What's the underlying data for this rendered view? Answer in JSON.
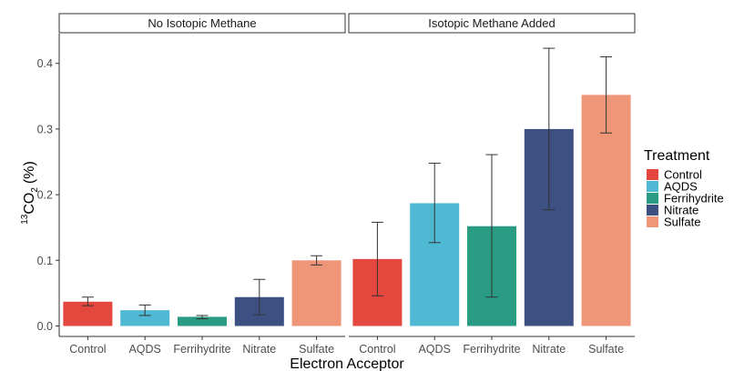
{
  "chart_data": {
    "type": "bar",
    "xlabel": "Electron Acceptor",
    "ylabel_main": "CO",
    "ylabel_sup": "13",
    "ylabel_sub": "2",
    "ylabel_unit": "(%)",
    "ylim": [
      0,
      0.43
    ],
    "yticks": [
      0.0,
      0.1,
      0.2,
      0.3,
      0.4
    ],
    "ytick_labels": [
      "0.0",
      "0.1",
      "0.2",
      "0.3",
      "0.4"
    ],
    "grid": false,
    "legend": {
      "title": "Treatment",
      "placement": "right",
      "items": [
        {
          "label": "Control",
          "color": "#e4473e"
        },
        {
          "label": "AQDS",
          "color": "#4fb8d3"
        },
        {
          "label": "Ferrihydrite",
          "color": "#2a9c83"
        },
        {
          "label": "Nitrate",
          "color": "#3d5082"
        },
        {
          "label": "Sulfate",
          "color": "#ef9679"
        }
      ]
    },
    "categories": [
      "Control",
      "AQDS",
      "Ferrihydrite",
      "Nitrate",
      "Sulfate"
    ],
    "colors": [
      "#e4473e",
      "#4fb8d3",
      "#2a9c83",
      "#3d5082",
      "#ef9679"
    ],
    "panels": [
      {
        "title": "No Isotopic Methane",
        "values": [
          0.037,
          0.024,
          0.014,
          0.044,
          0.1
        ],
        "err_low": [
          0.031,
          0.016,
          0.011,
          0.017,
          0.093
        ],
        "err_high": [
          0.044,
          0.032,
          0.016,
          0.071,
          0.107
        ]
      },
      {
        "title": "Isotopic Methane Added",
        "values": [
          0.102,
          0.187,
          0.152,
          0.3,
          0.352
        ],
        "err_low": [
          0.046,
          0.127,
          0.044,
          0.177,
          0.294
        ],
        "err_high": [
          0.158,
          0.248,
          0.261,
          0.423,
          0.41
        ]
      }
    ]
  }
}
